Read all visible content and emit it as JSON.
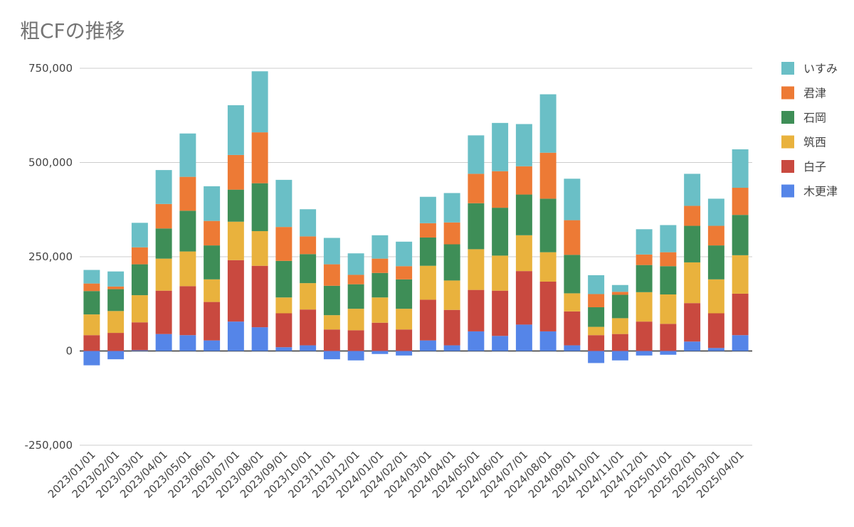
{
  "chart_data": {
    "type": "bar",
    "stacked": true,
    "title": "粗CFの推移",
    "xlabel": "",
    "ylabel": "",
    "ylim": [
      -250000,
      750000
    ],
    "yticks": [
      -250000,
      0,
      250000,
      500000,
      750000
    ],
    "ytick_labels": [
      "-250,000",
      "0",
      "250,000",
      "500,000",
      "750,000"
    ],
    "grid": true,
    "legend_position": "right",
    "categories": [
      "2023/01/01",
      "2023/02/01",
      "2023/03/01",
      "2023/04/01",
      "2023/05/01",
      "2023/06/01",
      "2023/07/01",
      "2023/08/01",
      "2023/09/01",
      "2023/10/01",
      "2023/11/01",
      "2023/12/01",
      "2024/01/01",
      "2024/02/01",
      "2024/03/01",
      "2024/04/01",
      "2024/05/01",
      "2024/06/01",
      "2024/07/01",
      "2024/08/01",
      "2024/09/01",
      "2024/10/01",
      "2024/11/01",
      "2024/12/01",
      "2025/01/01",
      "2025/02/01",
      "2025/03/01",
      "2025/04/01"
    ],
    "series": [
      {
        "name": "木更津",
        "color": "#5585e8",
        "values": [
          -38000,
          -22000,
          2000,
          45000,
          42000,
          28000,
          78000,
          63000,
          10000,
          15000,
          -22000,
          -25000,
          -8000,
          -12000,
          28000,
          15000,
          52000,
          40000,
          70000,
          52000,
          15000,
          -32000,
          -25000,
          -12000,
          -10000,
          25000,
          8000,
          42000
        ]
      },
      {
        "name": "白子",
        "color": "#c9493f",
        "values": [
          42000,
          48000,
          74000,
          115000,
          130000,
          102000,
          163000,
          163000,
          90000,
          95000,
          57000,
          55000,
          75000,
          57000,
          108000,
          94000,
          110000,
          120000,
          142000,
          132000,
          90000,
          42000,
          45000,
          78000,
          72000,
          102000,
          92000,
          110000
        ]
      },
      {
        "name": "筑西",
        "color": "#e9b23d",
        "values": [
          55000,
          58000,
          72000,
          85000,
          92000,
          60000,
          102000,
          92000,
          42000,
          70000,
          38000,
          57000,
          67000,
          55000,
          90000,
          78000,
          108000,
          93000,
          95000,
          78000,
          48000,
          22000,
          42000,
          78000,
          78000,
          108000,
          90000,
          102000
        ]
      },
      {
        "name": "石岡",
        "color": "#3e8e57",
        "values": [
          62000,
          58000,
          82000,
          80000,
          108000,
          90000,
          85000,
          127000,
          97000,
          77000,
          78000,
          65000,
          65000,
          78000,
          75000,
          96000,
          122000,
          127000,
          108000,
          142000,
          102000,
          52000,
          62000,
          72000,
          75000,
          97000,
          90000,
          107000
        ]
      },
      {
        "name": "君津",
        "color": "#ed7a35",
        "values": [
          20000,
          7000,
          45000,
          65000,
          90000,
          65000,
          92000,
          135000,
          90000,
          47000,
          57000,
          25000,
          38000,
          35000,
          38000,
          58000,
          78000,
          97000,
          75000,
          122000,
          92000,
          35000,
          8000,
          28000,
          37000,
          53000,
          52000,
          72000
        ]
      },
      {
        "name": "いすみ",
        "color": "#6abfc6",
        "values": [
          36000,
          40000,
          65000,
          90000,
          115000,
          92000,
          132000,
          162000,
          125000,
          72000,
          70000,
          57000,
          62000,
          65000,
          70000,
          78000,
          102000,
          128000,
          112000,
          155000,
          110000,
          50000,
          18000,
          67000,
          72000,
          85000,
          72000,
          102000
        ]
      }
    ]
  }
}
